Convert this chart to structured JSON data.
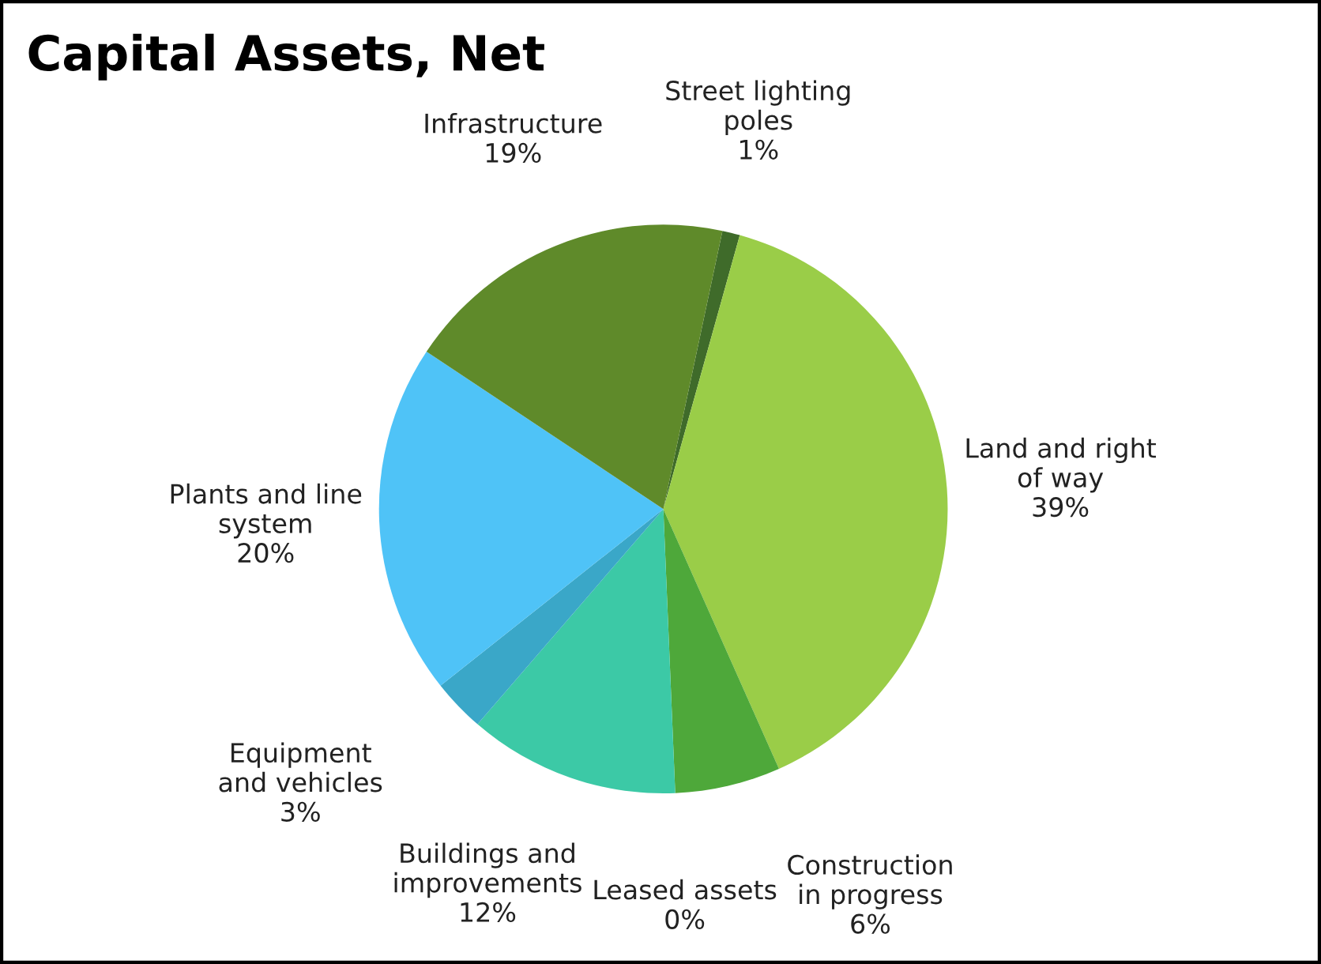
{
  "chart_data": {
    "type": "pie",
    "title": "Capital Assets, Net",
    "categories": [
      "Street lighting\npoles",
      "Land and right\nof way",
      "Construction\nin progress",
      "Leased assets",
      "Buildings and\nimprovements",
      "Equipment\nand vehicles",
      "Plants and line\nsystem",
      "Infrastructure"
    ],
    "values": [
      1,
      39,
      6,
      0,
      12,
      3,
      20,
      19
    ],
    "value_labels": [
      "1%",
      "39%",
      "6%",
      "0%",
      "12%",
      "3%",
      "20%",
      "19%"
    ],
    "colors": [
      "#3f6b2a",
      "#9acd48",
      "#4ea83a",
      "#2aa58a",
      "#3cc9a6",
      "#3aa7c8",
      "#4fc3f7",
      "#5f8a2a"
    ],
    "legend": false
  }
}
